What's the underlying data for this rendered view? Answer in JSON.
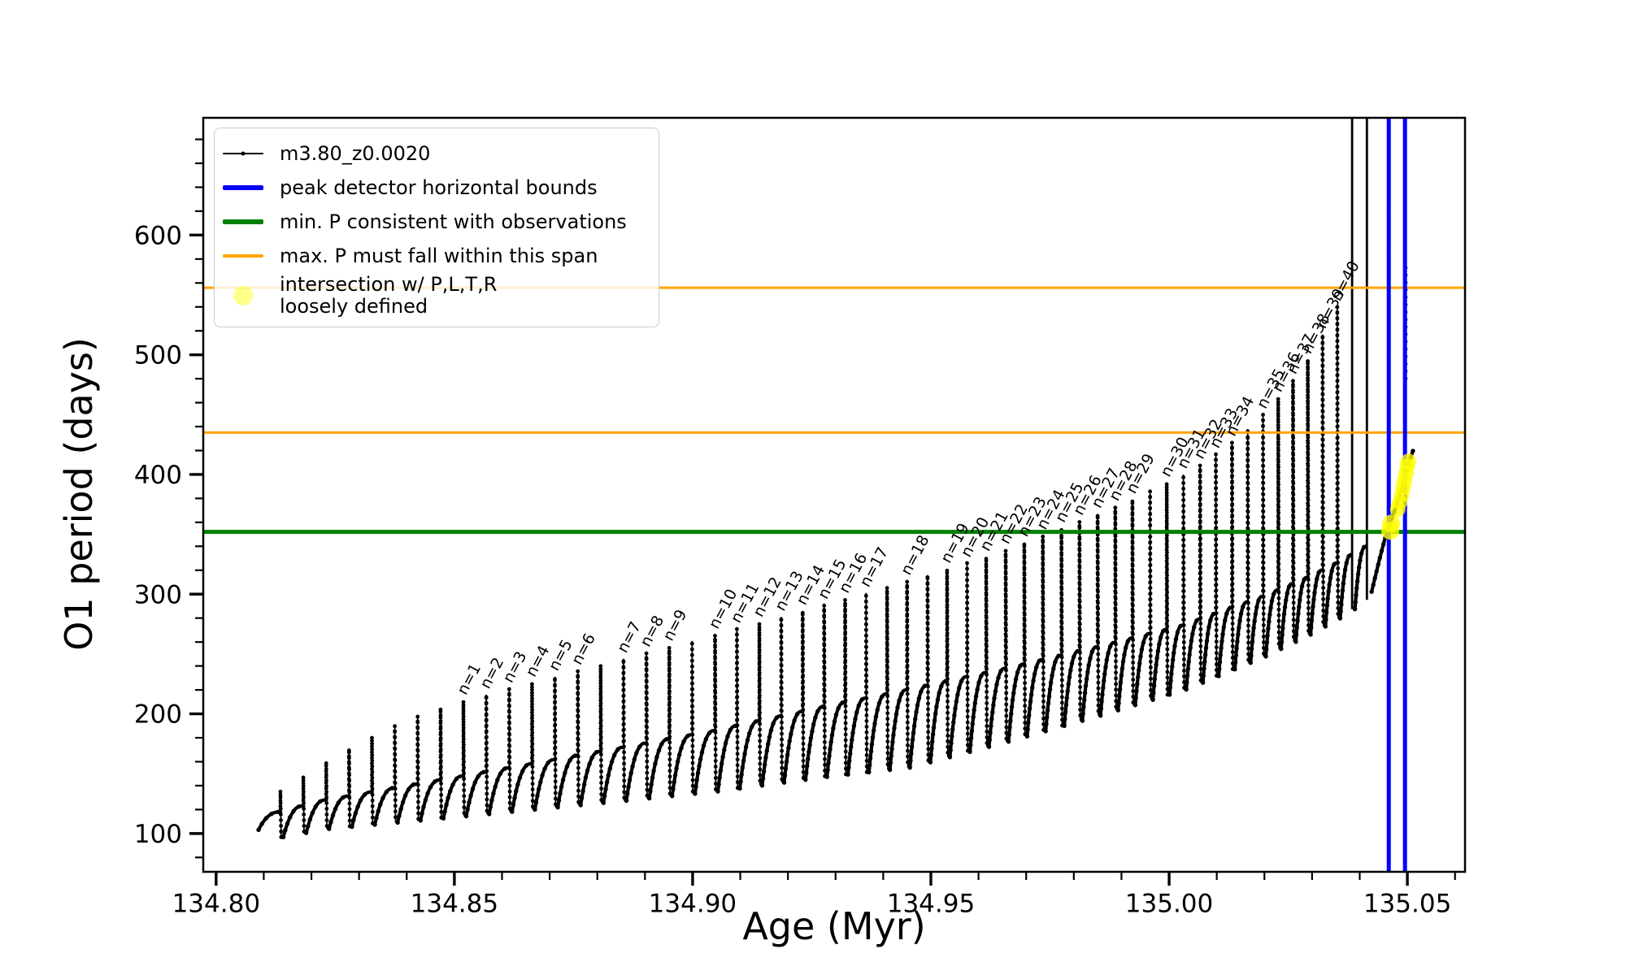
{
  "figure": {
    "background": "#ffffff"
  },
  "axes": {
    "xlabel": "Age (Myr)",
    "ylabel": "O1 period (days)",
    "xlim": [
      134.7973,
      135.0621
    ],
    "ylim": [
      68,
      698
    ],
    "x_ticks": [
      {
        "v": 134.8,
        "label": "134.80"
      },
      {
        "v": 134.85,
        "label": "134.85"
      },
      {
        "v": 134.9,
        "label": "134.90"
      },
      {
        "v": 134.95,
        "label": "134.95"
      },
      {
        "v": 135.0,
        "label": "135.00"
      },
      {
        "v": 135.05,
        "label": "135.05"
      }
    ],
    "x_minor_step": 0.01,
    "y_ticks": [
      {
        "v": 100,
        "label": "100"
      },
      {
        "v": 200,
        "label": "200"
      },
      {
        "v": 300,
        "label": "300"
      },
      {
        "v": 400,
        "label": "400"
      },
      {
        "v": 500,
        "label": "500"
      },
      {
        "v": 600,
        "label": "600"
      }
    ],
    "y_minor_step": 20
  },
  "legend": {
    "entries": [
      {
        "type": "line-dot",
        "color": "#000000",
        "weight": 1.6,
        "label": "m3.80_z0.0020"
      },
      {
        "type": "line",
        "color": "#0000ff",
        "weight": 6,
        "label": "peak detector horizontal bounds"
      },
      {
        "type": "line",
        "color": "#008000",
        "weight": 6,
        "label": "min. P consistent with observations"
      },
      {
        "type": "line",
        "color": "#ffa500",
        "weight": 3.5,
        "label": "max. P must fall within this span"
      },
      {
        "type": "marker",
        "color": "rgba(255,255,0,0.45)",
        "label": "intersection w/ P,L,T,R\nloosely defined"
      }
    ]
  },
  "chart_data": {
    "type": "line",
    "title": "",
    "xlabel": "Age (Myr)",
    "ylabel": "O1 period (days)",
    "series_name": "m3.80_z0.0020",
    "colors": {
      "series": "#000000",
      "peak_bounds": "#0000ff",
      "min_p": "#008000",
      "max_p": "#ffa500",
      "intersection": "#ffff00"
    },
    "hlines": [
      {
        "value": 556,
        "color": "#ffa500",
        "width": 3,
        "name": "max-p-upper"
      },
      {
        "value": 435,
        "color": "#ffa500",
        "width": 3,
        "name": "max-p-lower"
      },
      {
        "value": 352,
        "color": "#008000",
        "width": 5,
        "name": "min-p"
      }
    ],
    "vlines": [
      {
        "value": 135.0461,
        "color": "#0000ff",
        "width": 5,
        "name": "peak-bound-left"
      },
      {
        "value": 135.0495,
        "color": "#0000ff",
        "width": 5,
        "name": "peak-bound-right"
      }
    ],
    "track_start": [
      134.8089,
      103
    ],
    "pulses": [
      [
        134.8135,
        136
      ],
      [
        134.8183,
        148
      ],
      [
        134.8231,
        160
      ],
      [
        134.8279,
        171
      ],
      [
        134.8327,
        181
      ],
      [
        134.8375,
        190
      ],
      [
        134.8423,
        198
      ],
      [
        134.8471,
        205
      ],
      [
        134.8519,
        211,
        "n=1"
      ],
      [
        134.8567,
        216,
        "n=2"
      ],
      [
        134.8615,
        221,
        "n=3"
      ],
      [
        134.8663,
        226,
        "n=4"
      ],
      [
        134.8711,
        231,
        "n=5"
      ],
      [
        134.8759,
        236,
        "n=6"
      ],
      [
        134.8807,
        241
      ],
      [
        134.8855,
        246,
        "n=7"
      ],
      [
        134.8903,
        251,
        "n=8"
      ],
      [
        134.8951,
        256,
        "n=9"
      ],
      [
        134.8999,
        261
      ],
      [
        134.9047,
        266,
        "n=10"
      ],
      [
        134.9093,
        271,
        "n=11"
      ],
      [
        134.914,
        276,
        "n=12"
      ],
      [
        134.9186,
        281,
        "n=13"
      ],
      [
        134.9231,
        286,
        "n=14"
      ],
      [
        134.9276,
        291,
        "n=15"
      ],
      [
        134.932,
        296,
        "n=16"
      ],
      [
        134.9364,
        301,
        "n=17"
      ],
      [
        134.9408,
        306
      ],
      [
        134.945,
        311,
        "n=18"
      ],
      [
        134.9493,
        316
      ],
      [
        134.9534,
        321,
        "n=19"
      ],
      [
        134.9576,
        326,
        "n=20"
      ],
      [
        134.9616,
        331,
        "n=21"
      ],
      [
        134.9657,
        337,
        "n=22"
      ],
      [
        134.9696,
        343,
        "n=23"
      ],
      [
        134.9735,
        349,
        "n=24"
      ],
      [
        134.9774,
        355,
        "n=25"
      ],
      [
        134.9812,
        361,
        "n=26"
      ],
      [
        134.985,
        367,
        "n=27"
      ],
      [
        134.9887,
        373,
        "n=28"
      ],
      [
        134.9923,
        379,
        "n=29"
      ],
      [
        134.996,
        386
      ],
      [
        134.9995,
        393,
        "n=30"
      ],
      [
        135.003,
        400,
        "n=31"
      ],
      [
        135.0065,
        408,
        "n=32"
      ],
      [
        135.0098,
        417,
        "n=33"
      ],
      [
        135.0132,
        427,
        "n=34"
      ],
      [
        135.0165,
        438
      ],
      [
        135.0197,
        450,
        "n=35"
      ],
      [
        135.0229,
        464,
        "n=36"
      ],
      [
        135.026,
        479,
        "n=37"
      ],
      [
        135.0291,
        496,
        "n=38"
      ],
      [
        135.0322,
        517,
        "n=39"
      ],
      [
        135.0353,
        540,
        "n=40"
      ],
      [
        135.0384,
        712
      ],
      [
        135.0415,
        735
      ],
      [
        135.0458,
        660
      ]
    ],
    "clipped_solid_indices": [
      54,
      55
    ],
    "dotted_on_bound_index": 56,
    "baseline_points": [
      [
        134.8089,
        103
      ],
      [
        134.8135,
        118
      ],
      [
        134.8231,
        128
      ],
      [
        134.8519,
        148
      ],
      [
        134.8855,
        172
      ],
      [
        134.9047,
        186
      ],
      [
        134.9276,
        206
      ],
      [
        134.945,
        220
      ],
      [
        134.9657,
        238
      ],
      [
        134.985,
        256
      ],
      [
        135.003,
        274
      ],
      [
        135.0197,
        298
      ],
      [
        135.0291,
        314
      ],
      [
        135.0353,
        326
      ],
      [
        135.0415,
        340
      ],
      [
        135.0458,
        352
      ],
      [
        135.0495,
        382
      ],
      [
        135.0515,
        413
      ]
    ],
    "undershoot": {
      "start": 21,
      "mid": 65,
      "mid_index": 28,
      "end": 44
    },
    "end_curve": [
      [
        135.0425,
        302
      ],
      [
        135.0442,
        330
      ],
      [
        135.0452,
        345
      ],
      [
        135.046,
        355
      ],
      [
        135.0468,
        364
      ],
      [
        135.0478,
        375
      ],
      [
        135.0488,
        388
      ],
      [
        135.0498,
        402
      ],
      [
        135.0506,
        413
      ],
      [
        135.0512,
        420
      ]
    ],
    "tip_dots": {
      "x": 135.0496,
      "from": 480,
      "to": 577
    },
    "intersection_markers": {
      "blob": [
        [
          135.0464,
          353
        ],
        [
          135.0466,
          359
        ]
      ],
      "blob_radius": 11,
      "streak": [
        [
          135.048,
          371
        ],
        [
          135.0484,
          377
        ],
        [
          135.0488,
          383
        ],
        [
          135.0491,
          389
        ],
        [
          135.0494,
          395
        ],
        [
          135.0497,
          401
        ],
        [
          135.05,
          407
        ],
        [
          135.0502,
          411
        ]
      ],
      "streak_radius": 9.5
    }
  }
}
